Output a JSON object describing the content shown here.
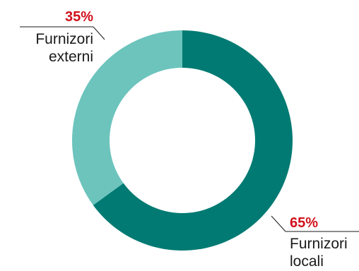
{
  "chart_data": {
    "type": "pie",
    "variant": "donut",
    "slices": [
      {
        "label_lines": [
          "Furnizori",
          "locali"
        ],
        "value": 65,
        "value_label": "65%",
        "color": "#007a72"
      },
      {
        "label_lines": [
          "Furnizori",
          "externi"
        ],
        "value": 35,
        "value_label": "35%",
        "color": "#6cc4bd"
      }
    ],
    "value_label_color": "#d1111c",
    "start": "top",
    "direction": "clockwise"
  }
}
